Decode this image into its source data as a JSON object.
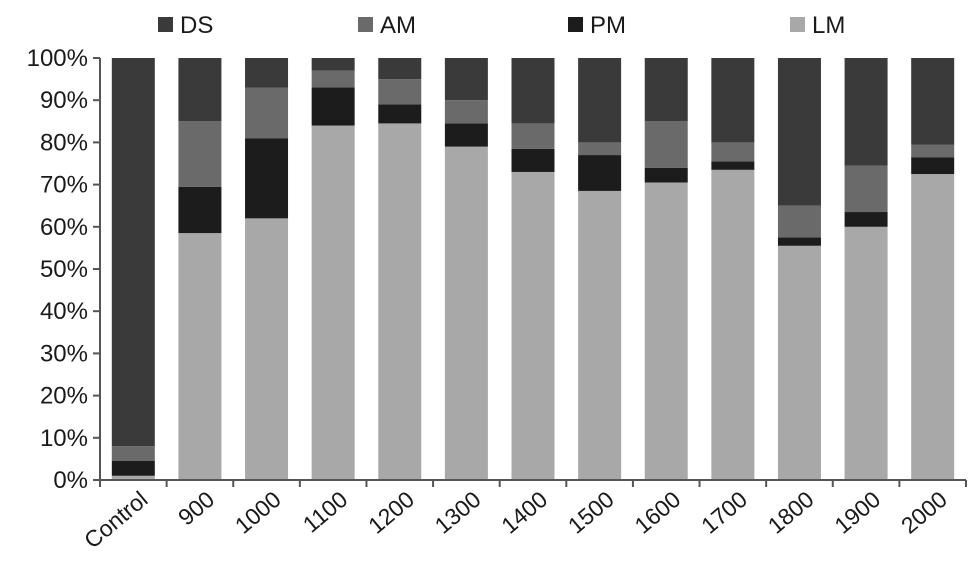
{
  "chart_data": {
    "type": "stacked-bar",
    "categories": [
      "Control",
      "900",
      "1000",
      "1100",
      "1200",
      "1300",
      "1400",
      "1500",
      "1600",
      "1700",
      "1800",
      "1900",
      "2000"
    ],
    "series": [
      {
        "name": "LM",
        "color": "#a8a8a8",
        "values": [
          1,
          58.5,
          62,
          84,
          84.5,
          79,
          73,
          68.5,
          70.5,
          73.5,
          55.5,
          60,
          72.5
        ]
      },
      {
        "name": "PM",
        "color": "#1c1c1c",
        "values": [
          3.5,
          11,
          19,
          9,
          4.5,
          5.5,
          5.5,
          8.5,
          3.5,
          2,
          2,
          3.5,
          4
        ]
      },
      {
        "name": "AM",
        "color": "#6a6a6a",
        "values": [
          3.5,
          15.5,
          12,
          4,
          6,
          5.5,
          6,
          3,
          11,
          4.5,
          7.5,
          11,
          3
        ]
      },
      {
        "name": "DS",
        "color": "#3a3a3a",
        "values": [
          92,
          15,
          7,
          3,
          5,
          10,
          15.5,
          20,
          15,
          20,
          35,
          25.5,
          20.5
        ]
      }
    ],
    "legend_order": [
      "DS",
      "AM",
      "PM",
      "LM"
    ],
    "legend_position": "top",
    "y_ticks": [
      "0%",
      "10%",
      "20%",
      "30%",
      "40%",
      "50%",
      "60%",
      "70%",
      "80%",
      "90%",
      "100%"
    ],
    "ylim": [
      0,
      100
    ],
    "grid": false
  }
}
